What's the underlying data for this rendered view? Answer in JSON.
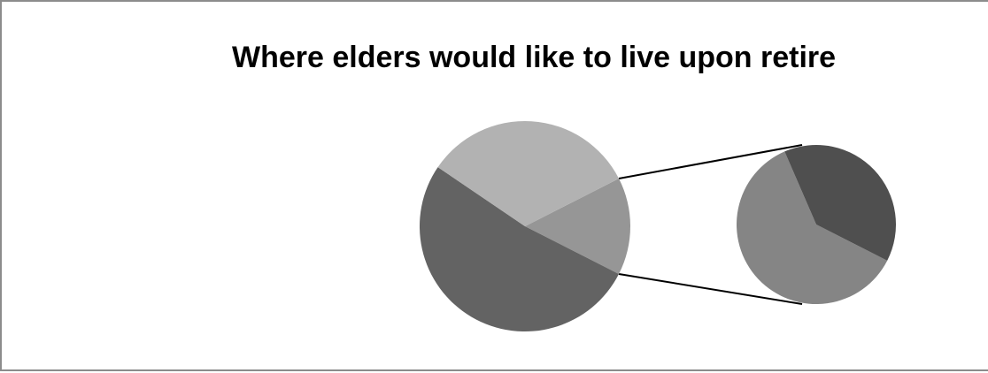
{
  "chart_data": {
    "type": "pie",
    "subtype": "pie-of-pie",
    "title": "Where elders would like to live upon retire",
    "main_pie": {
      "slices": [
        {
          "value": 52,
          "color": "#636363",
          "split": false
        },
        {
          "value": 15,
          "color": "#969696",
          "split": true
        },
        {
          "value": 33,
          "color": "#b2b2b2",
          "split": false
        }
      ]
    },
    "secondary_pie": {
      "slices": [
        {
          "value": 61,
          "color": "#858585"
        },
        {
          "value": 39,
          "color": "#4f4f4f"
        }
      ]
    },
    "legend": "none",
    "connector_color": "#000000"
  }
}
